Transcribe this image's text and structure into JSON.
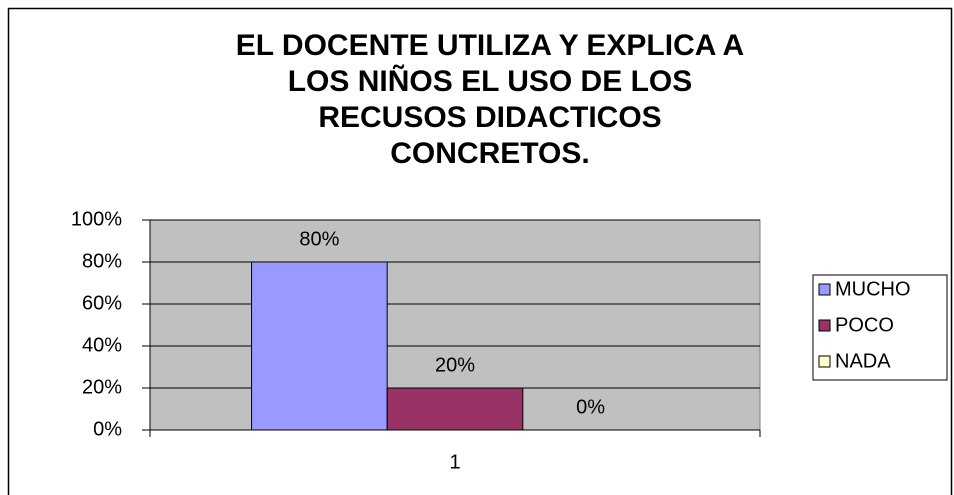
{
  "chart_data": {
    "type": "bar",
    "title": [
      "EL DOCENTE UTILIZA Y EXPLICA A",
      "LOS NIÑOS EL USO DE LOS",
      "RECUSOS DIDACTICOS",
      "CONCRETOS."
    ],
    "categories": [
      "1"
    ],
    "series": [
      {
        "name": "MUCHO",
        "color": "#9999ff",
        "values": [
          80
        ],
        "value_labels": [
          "80%"
        ]
      },
      {
        "name": "POCO",
        "color": "#993366",
        "values": [
          20
        ],
        "value_labels": [
          "20%"
        ]
      },
      {
        "name": "NADA",
        "color": "#ffffcc",
        "values": [
          0
        ],
        "value_labels": [
          "0%"
        ]
      }
    ],
    "ylim": [
      0,
      100
    ],
    "yticks": [
      {
        "value": 0,
        "label": "0%"
      },
      {
        "value": 20,
        "label": "20%"
      },
      {
        "value": 40,
        "label": "40%"
      },
      {
        "value": 60,
        "label": "60%"
      },
      {
        "value": 80,
        "label": "80%"
      },
      {
        "value": 100,
        "label": "100%"
      }
    ],
    "grid": true,
    "legend": "right",
    "plot_background": "#c0c0c0"
  }
}
